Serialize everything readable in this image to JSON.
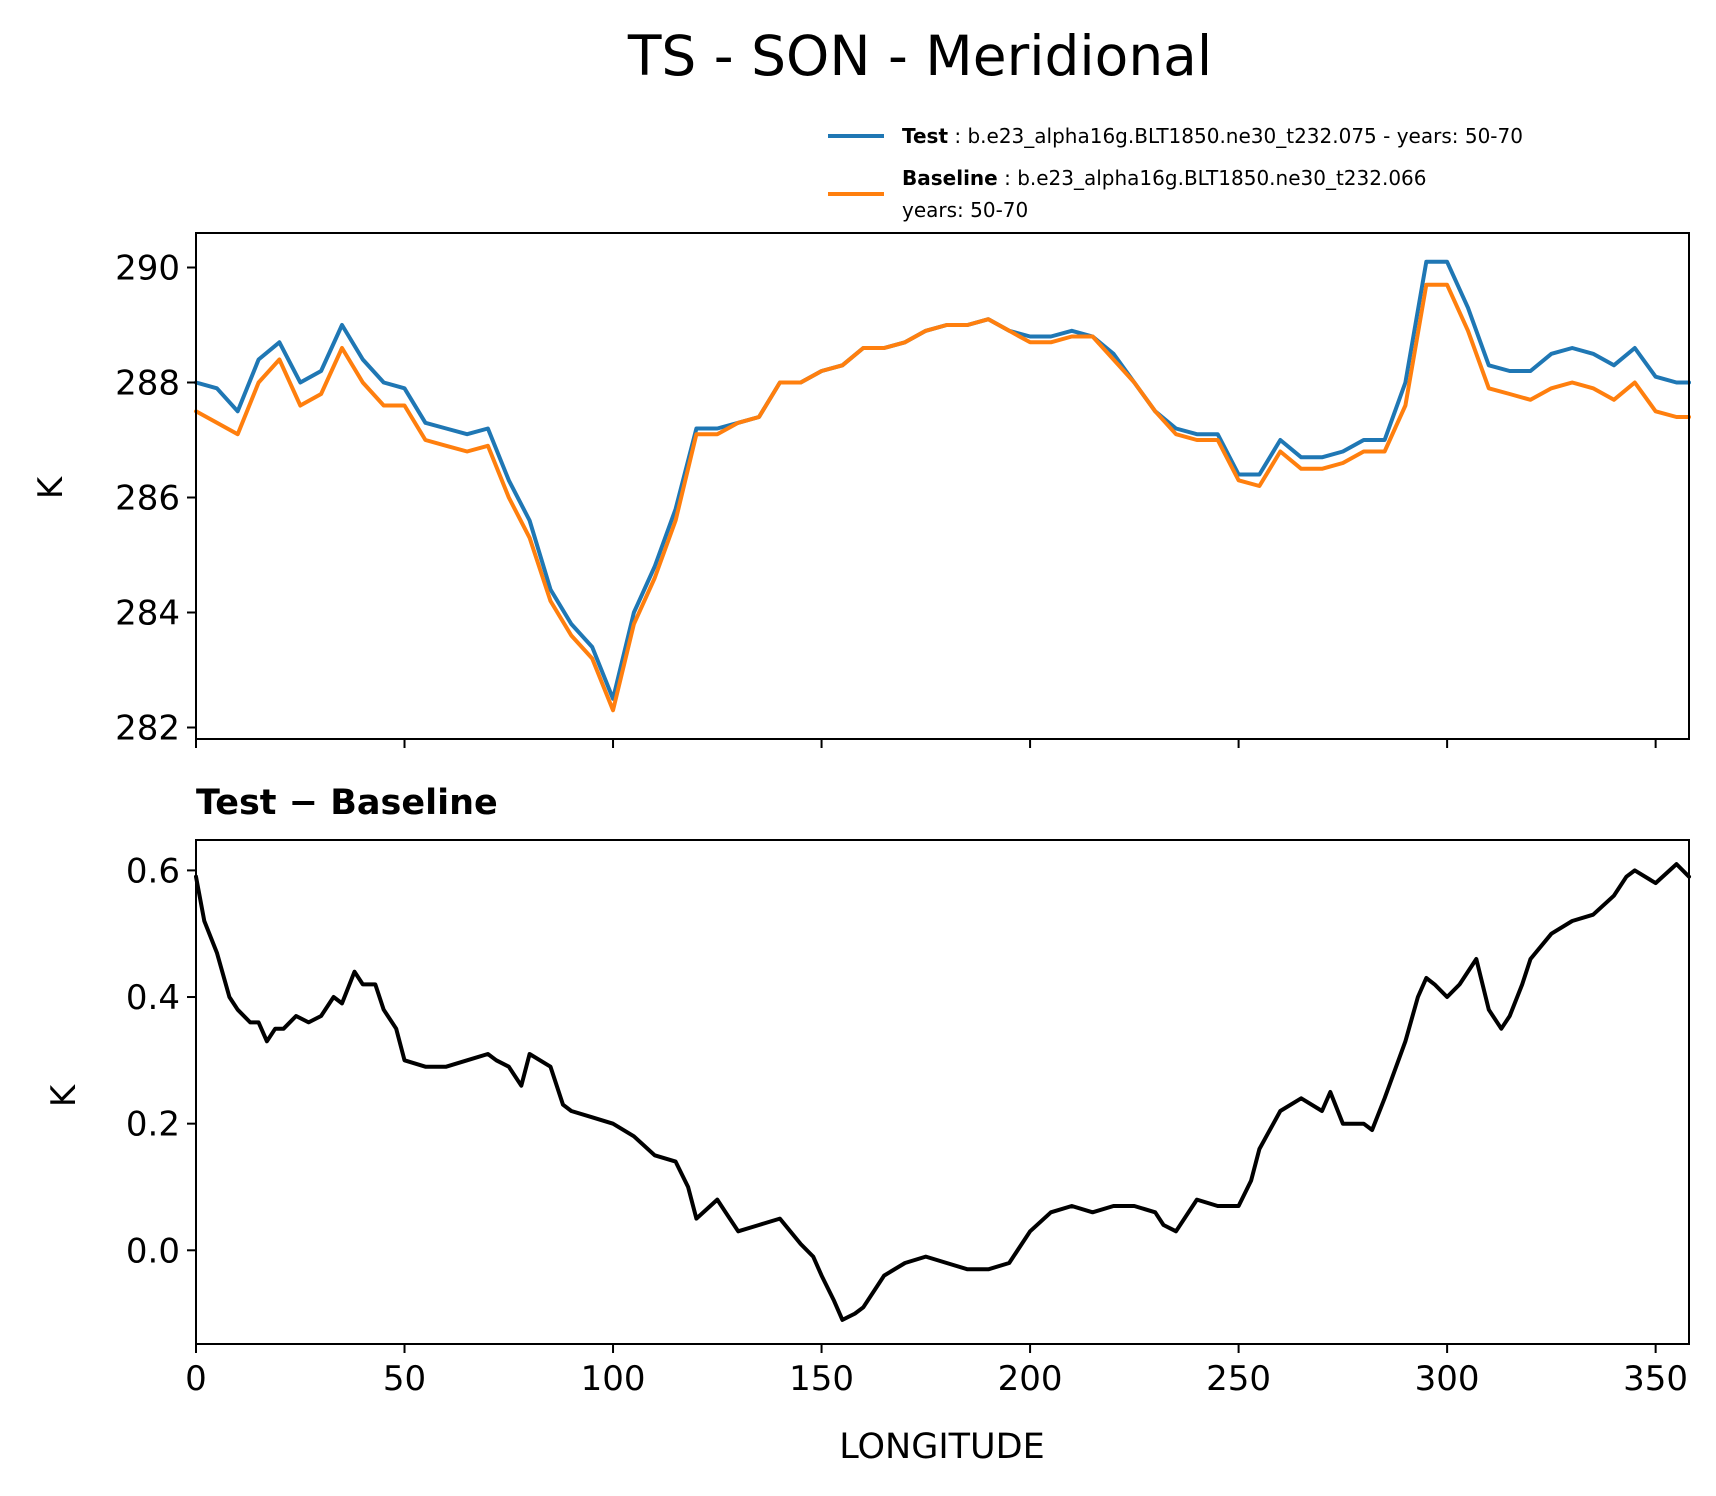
{
  "figure": {
    "title": "TS - SON - Meridional",
    "xlabel": "LONGITUDE"
  },
  "legend": {
    "test": {
      "label_bold": "Test",
      "label_text": ": b.e23_alpha16g.BLT1850.ne30_t232.075 - years: 50-70",
      "color": "#1f77b4"
    },
    "baseline": {
      "label_bold": "Baseline",
      "label_text": ": b.e23_alpha16g.BLT1850.ne30_t232.066",
      "label_text_2": "years: 50-70",
      "color": "#ff7f0e"
    }
  },
  "panel_bottom": {
    "title": "Test − Baseline"
  },
  "chart_data": [
    {
      "type": "line",
      "title": "",
      "xlabel": "",
      "ylabel": "K",
      "xlim": [
        0,
        358
      ],
      "ylim": [
        281.8,
        290.6
      ],
      "xticks": [
        0,
        50,
        100,
        150,
        200,
        250,
        300,
        350
      ],
      "yticks": [
        282,
        284,
        286,
        288,
        290
      ],
      "ytick_labels": [
        "282",
        "284",
        "286",
        "288",
        "290"
      ],
      "grid": false,
      "legend_position": "above-right",
      "x": [
        0,
        5,
        10,
        15,
        20,
        25,
        30,
        35,
        40,
        45,
        50,
        55,
        60,
        65,
        70,
        75,
        80,
        85,
        90,
        95,
        100,
        105,
        110,
        115,
        120,
        125,
        130,
        135,
        140,
        145,
        150,
        155,
        160,
        165,
        170,
        175,
        180,
        185,
        190,
        195,
        200,
        205,
        210,
        215,
        220,
        225,
        230,
        235,
        240,
        245,
        250,
        255,
        260,
        265,
        270,
        275,
        280,
        285,
        290,
        295,
        300,
        305,
        310,
        315,
        320,
        325,
        330,
        335,
        340,
        345,
        350,
        355,
        358
      ],
      "series": [
        {
          "name": "Test",
          "color": "#1f77b4",
          "values": [
            288.0,
            287.9,
            287.5,
            288.4,
            288.7,
            288.0,
            288.2,
            289.0,
            288.4,
            288.0,
            287.9,
            287.3,
            287.2,
            287.1,
            287.2,
            286.3,
            285.6,
            284.4,
            283.8,
            283.4,
            282.5,
            284.0,
            284.8,
            285.8,
            287.2,
            287.2,
            287.3,
            287.4,
            288.0,
            288.0,
            288.2,
            288.3,
            288.6,
            288.6,
            288.7,
            288.9,
            289.0,
            289.0,
            289.1,
            288.9,
            288.8,
            288.8,
            288.9,
            288.8,
            288.5,
            288.0,
            287.5,
            287.2,
            287.1,
            287.1,
            286.4,
            286.4,
            287.0,
            286.7,
            286.7,
            286.8,
            287.0,
            287.0,
            288.0,
            290.1,
            290.1,
            289.3,
            288.3,
            288.2,
            288.2,
            288.5,
            288.6,
            288.5,
            288.3,
            288.6,
            288.1,
            288.0,
            288.0
          ]
        },
        {
          "name": "Baseline",
          "color": "#ff7f0e",
          "values": [
            287.5,
            287.3,
            287.1,
            288.0,
            288.4,
            287.6,
            287.8,
            288.6,
            288.0,
            287.6,
            287.6,
            287.0,
            286.9,
            286.8,
            286.9,
            286.0,
            285.3,
            284.2,
            283.6,
            283.2,
            282.3,
            283.8,
            284.6,
            285.6,
            287.1,
            287.1,
            287.3,
            287.4,
            288.0,
            288.0,
            288.2,
            288.3,
            288.6,
            288.6,
            288.7,
            288.9,
            289.0,
            289.0,
            289.1,
            288.9,
            288.7,
            288.7,
            288.8,
            288.8,
            288.4,
            288.0,
            287.5,
            287.1,
            287.0,
            287.0,
            286.3,
            286.2,
            286.8,
            286.5,
            286.5,
            286.6,
            286.8,
            286.8,
            287.6,
            289.7,
            289.7,
            288.9,
            287.9,
            287.8,
            287.7,
            287.9,
            288.0,
            287.9,
            287.7,
            288.0,
            287.5,
            287.4,
            287.4
          ]
        }
      ]
    },
    {
      "type": "line",
      "title": "Test − Baseline",
      "xlabel": "LONGITUDE",
      "ylabel": "K",
      "xlim": [
        0,
        358
      ],
      "ylim": [
        -0.148,
        0.648
      ],
      "xticks": [
        0,
        50,
        100,
        150,
        200,
        250,
        300,
        350
      ],
      "xtick_labels": [
        "0",
        "50",
        "100",
        "150",
        "200",
        "250",
        "300",
        "350"
      ],
      "yticks": [
        0.0,
        0.2,
        0.4,
        0.6
      ],
      "ytick_labels": [
        "0.0",
        "0.2",
        "0.4",
        "0.6"
      ],
      "grid": false,
      "x": [
        0,
        2,
        5,
        8,
        10,
        13,
        15,
        17,
        19,
        21,
        24,
        27,
        30,
        33,
        35,
        38,
        40,
        43,
        45,
        48,
        50,
        55,
        60,
        65,
        70,
        72,
        75,
        78,
        80,
        85,
        88,
        90,
        95,
        100,
        105,
        110,
        115,
        118,
        120,
        125,
        127,
        130,
        135,
        140,
        145,
        148,
        150,
        153,
        155,
        158,
        160,
        165,
        170,
        175,
        180,
        185,
        190,
        195,
        200,
        205,
        210,
        215,
        220,
        225,
        230,
        232,
        235,
        240,
        245,
        250,
        253,
        255,
        260,
        265,
        270,
        272,
        275,
        280,
        282,
        285,
        290,
        293,
        295,
        297,
        300,
        303,
        307,
        310,
        313,
        315,
        318,
        320,
        325,
        330,
        335,
        340,
        343,
        345,
        350,
        355,
        358
      ],
      "series": [
        {
          "name": "Test − Baseline",
          "color": "#000000",
          "values": [
            0.59,
            0.52,
            0.47,
            0.4,
            0.38,
            0.36,
            0.36,
            0.33,
            0.35,
            0.35,
            0.37,
            0.36,
            0.37,
            0.4,
            0.39,
            0.44,
            0.42,
            0.42,
            0.38,
            0.35,
            0.3,
            0.29,
            0.29,
            0.3,
            0.31,
            0.3,
            0.29,
            0.26,
            0.31,
            0.29,
            0.23,
            0.22,
            0.21,
            0.2,
            0.18,
            0.15,
            0.14,
            0.1,
            0.05,
            0.08,
            0.06,
            0.03,
            0.04,
            0.05,
            0.01,
            -0.01,
            -0.04,
            -0.08,
            -0.11,
            -0.1,
            -0.09,
            -0.04,
            -0.02,
            -0.01,
            -0.02,
            -0.03,
            -0.03,
            -0.02,
            0.03,
            0.06,
            0.07,
            0.06,
            0.07,
            0.07,
            0.06,
            0.04,
            0.03,
            0.08,
            0.07,
            0.07,
            0.11,
            0.16,
            0.22,
            0.24,
            0.22,
            0.25,
            0.2,
            0.2,
            0.19,
            0.24,
            0.33,
            0.4,
            0.43,
            0.42,
            0.4,
            0.42,
            0.46,
            0.38,
            0.35,
            0.37,
            0.42,
            0.46,
            0.5,
            0.52,
            0.53,
            0.56,
            0.59,
            0.6,
            0.58,
            0.61,
            0.59
          ]
        }
      ]
    }
  ]
}
